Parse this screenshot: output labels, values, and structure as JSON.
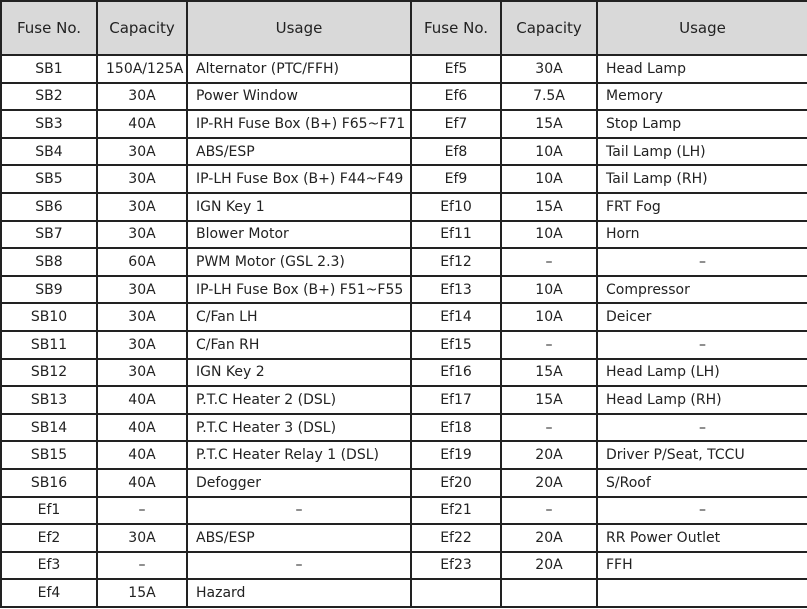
{
  "headers": [
    "Fuse No.",
    "Capacity",
    "Usage",
    "Fuse No.",
    "Capacity",
    "Usage"
  ],
  "rows": [
    [
      "SB1",
      "150A/125A",
      "Alternator (PTC/FFH)",
      "Ef5",
      "30A",
      "Head Lamp"
    ],
    [
      "SB2",
      "30A",
      "Power Window",
      "Ef6",
      "7.5A",
      "Memory"
    ],
    [
      "SB3",
      "40A",
      "IP-RH Fuse Box (B+) F65~F71",
      "Ef7",
      "15A",
      "Stop Lamp"
    ],
    [
      "SB4",
      "30A",
      "ABS/ESP",
      "Ef8",
      "10A",
      "Tail Lamp (LH)"
    ],
    [
      "SB5",
      "30A",
      "IP-LH Fuse Box (B+) F44~F49",
      "Ef9",
      "10A",
      "Tail Lamp (RH)"
    ],
    [
      "SB6",
      "30A",
      "IGN Key 1",
      "Ef10",
      "15A",
      "FRT Fog"
    ],
    [
      "SB7",
      "30A",
      "Blower Motor",
      "Ef11",
      "10A",
      "Horn"
    ],
    [
      "SB8",
      "60A",
      "PWM Motor (GSL 2.3)",
      "Ef12",
      "–",
      "–"
    ],
    [
      "SB9",
      "30A",
      "IP-LH Fuse Box (B+) F51~F55",
      "Ef13",
      "10A",
      "Compressor"
    ],
    [
      "SB10",
      "30A",
      "C/Fan LH",
      "Ef14",
      "10A",
      "Deicer"
    ],
    [
      "SB11",
      "30A",
      "C/Fan RH",
      "Ef15",
      "–",
      "–"
    ],
    [
      "SB12",
      "30A",
      "IGN Key 2",
      "Ef16",
      "15A",
      "Head Lamp (LH)"
    ],
    [
      "SB13",
      "40A",
      "P.T.C Heater 2 (DSL)",
      "Ef17",
      "15A",
      "Head Lamp (RH)"
    ],
    [
      "SB14",
      "40A",
      "P.T.C Heater 3 (DSL)",
      "Ef18",
      "–",
      "–"
    ],
    [
      "SB15",
      "40A",
      "P.T.C Heater Relay 1 (DSL)",
      "Ef19",
      "20A",
      "Driver P/Seat, TCCU"
    ],
    [
      "SB16",
      "40A",
      "Defogger",
      "Ef20",
      "20A",
      "S/Roof"
    ],
    [
      "Ef1",
      "–",
      "–",
      "Ef21",
      "–",
      "–"
    ],
    [
      "Ef2",
      "30A",
      "ABS/ESP",
      "Ef22",
      "20A",
      "RR Power Outlet"
    ],
    [
      "Ef3",
      "–",
      "–",
      "Ef23",
      "20A",
      "FFH"
    ],
    [
      "Ef4",
      "15A",
      "Hazard",
      "",
      "",
      " "
    ]
  ]
}
